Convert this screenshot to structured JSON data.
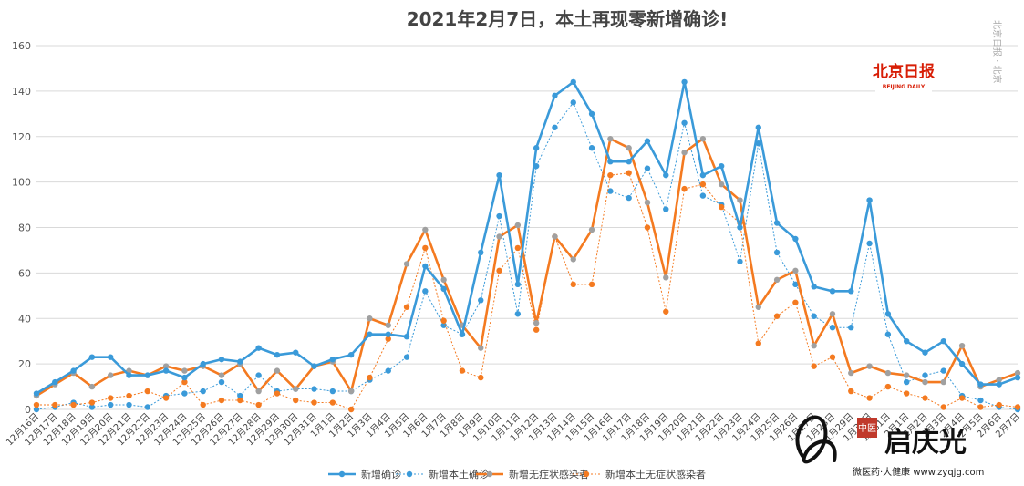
{
  "chart_data": {
    "type": "line",
    "title": "2021年2月7日，本土再现零新增确诊!",
    "ylim": [
      0,
      160
    ],
    "yticks": [
      0,
      20,
      40,
      60,
      80,
      100,
      120,
      140,
      160
    ],
    "grid": true,
    "legend_position": "bottom",
    "categories": [
      "12月16日",
      "12月17日",
      "12月18日",
      "12月19日",
      "12月20日",
      "12月21日",
      "12月22日",
      "12月23日",
      "12月24日",
      "12月25日",
      "12月26日",
      "12月27日",
      "12月28日",
      "12月29日",
      "12月30日",
      "12月31日",
      "1月1日",
      "1月2日",
      "1月3日",
      "1月4日",
      "1月5日",
      "1月6日",
      "1月7日",
      "1月8日",
      "1月9日",
      "1月10日",
      "1月11日",
      "1月12日",
      "1月13日",
      "1月14日",
      "1月15日",
      "1月16日",
      "1月17日",
      "1月18日",
      "1月19日",
      "1月20日",
      "1月21日",
      "1月22日",
      "1月23日",
      "1月24日",
      "1月25日",
      "1月26日",
      "1月27日",
      "1月28日",
      "1月29日",
      "1月30日",
      "1月31日",
      "2月1日",
      "2月2日",
      "2月3日",
      "2月4日",
      "2月5日",
      "2月6日",
      "2月7日"
    ],
    "series": [
      {
        "name": "新增确诊",
        "color": "#3a9ad9",
        "style": "solid",
        "values": [
          7,
          12,
          17,
          23,
          23,
          15,
          15,
          17,
          14,
          20,
          22,
          21,
          27,
          24,
          25,
          19,
          22,
          24,
          33,
          33,
          32,
          63,
          53,
          33,
          69,
          103,
          55,
          115,
          138,
          144,
          130,
          109,
          109,
          118,
          103,
          144,
          103,
          107,
          80,
          124,
          82,
          75,
          54,
          52,
          52,
          92,
          42,
          30,
          25,
          30,
          20,
          11,
          11,
          14
        ]
      },
      {
        "name": "新增本土确诊",
        "color": "#3a9ad9",
        "style": "dotted",
        "values": [
          0,
          1,
          3,
          1,
          2,
          2,
          1,
          6,
          7,
          8,
          12,
          6,
          15,
          8,
          9,
          9,
          8,
          8,
          13,
          17,
          23,
          52,
          37,
          33,
          48,
          85,
          42,
          107,
          124,
          135,
          115,
          96,
          93,
          106,
          88,
          126,
          94,
          90,
          65,
          117,
          69,
          55,
          41,
          36,
          36,
          73,
          33,
          12,
          15,
          17,
          6,
          4,
          1,
          0
        ]
      },
      {
        "name": "新增无症状感染者",
        "color": "#f47a20",
        "style": "solid",
        "values": [
          6,
          11,
          16,
          10,
          15,
          17,
          15,
          19,
          17,
          19,
          15,
          20,
          8,
          17,
          9,
          19,
          21,
          8,
          40,
          37,
          64,
          79,
          57,
          37,
          27,
          76,
          81,
          38,
          76,
          66,
          79,
          119,
          115,
          91,
          58,
          113,
          119,
          99,
          92,
          45,
          57,
          61,
          28,
          42,
          16,
          19,
          16,
          15,
          12,
          12,
          28,
          10,
          13,
          16
        ]
      },
      {
        "name": "新增本土无症状感染者",
        "color": "#f47a20",
        "style": "dotted",
        "values": [
          2,
          2,
          2,
          3,
          5,
          6,
          8,
          5,
          12,
          2,
          4,
          4,
          2,
          7,
          4,
          3,
          3,
          0,
          14,
          31,
          45,
          71,
          39,
          17,
          14,
          61,
          71,
          35,
          76,
          55,
          55,
          103,
          104,
          80,
          43,
          97,
          99,
          89,
          82,
          29,
          41,
          47,
          19,
          23,
          8,
          5,
          10,
          7,
          5,
          1,
          5,
          1,
          2,
          1
        ]
      }
    ]
  },
  "side_note": "北京日报 · 北京",
  "logo": {
    "cn": "北京日报",
    "en": "BEIJING DAILY"
  },
  "watermark": {
    "name": "启庆光",
    "badge": "中医",
    "url": "微医药·大健康 www.zyqjg.com"
  }
}
